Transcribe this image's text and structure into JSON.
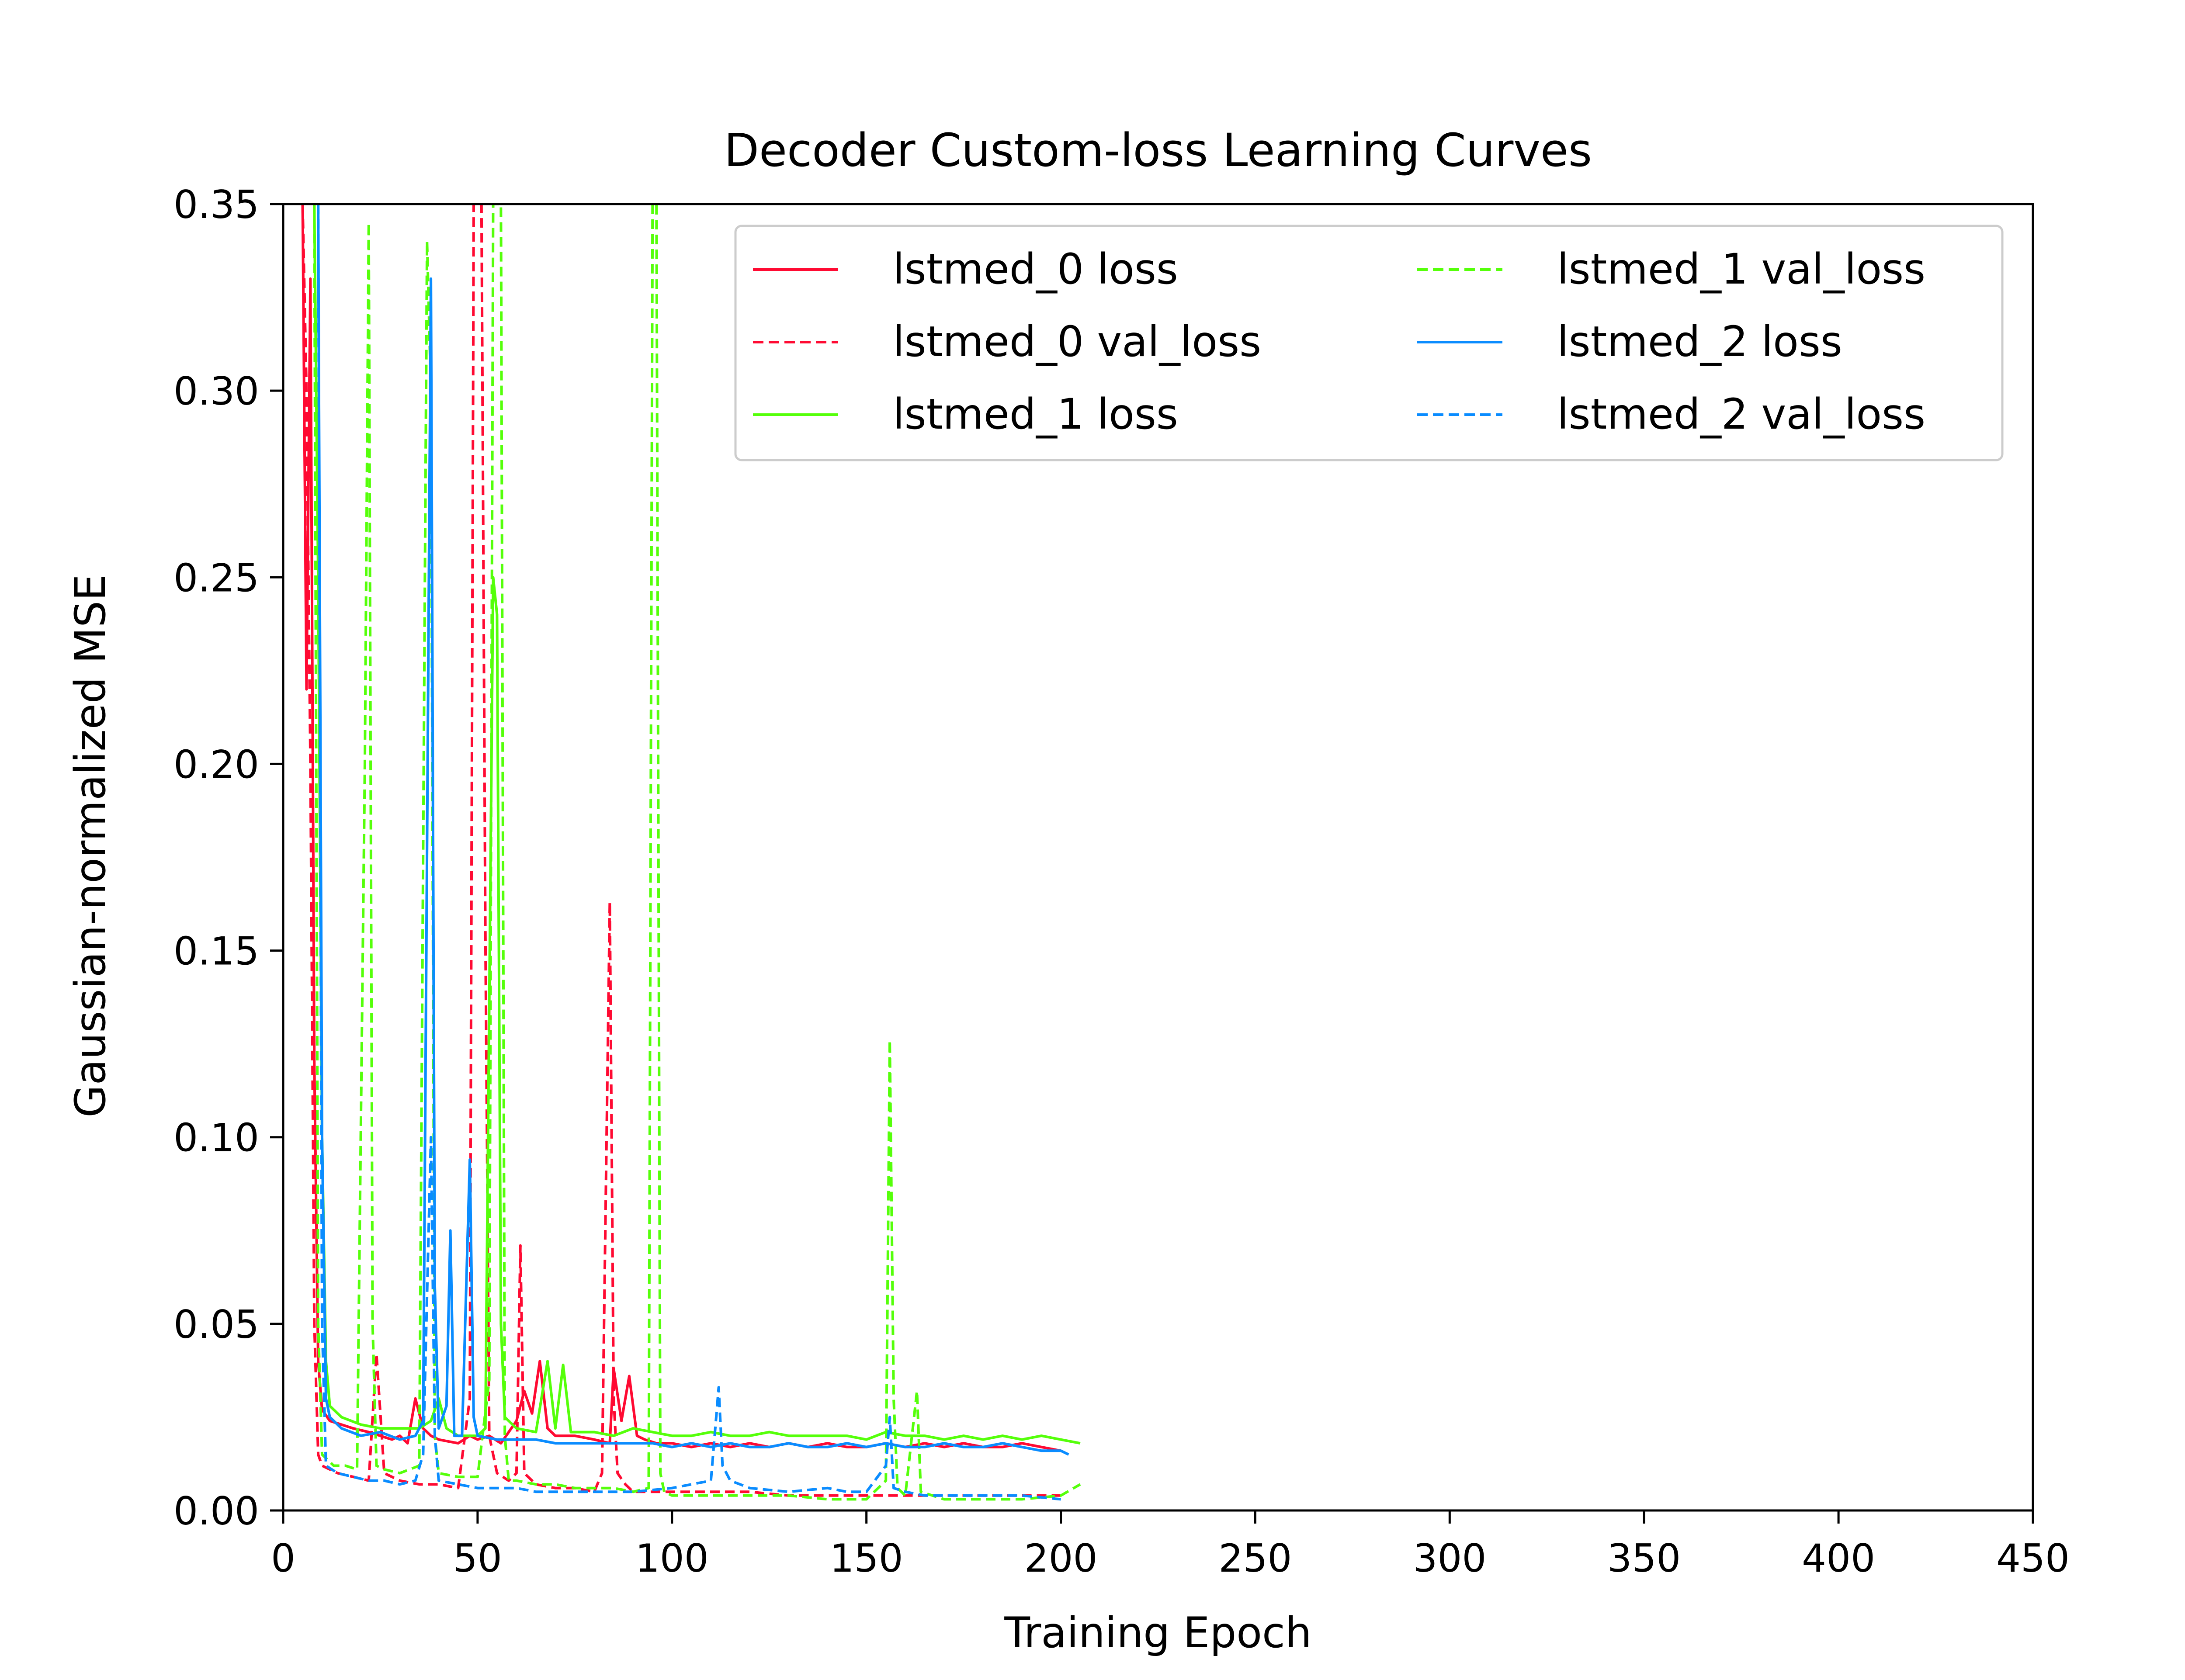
{
  "chart_data": {
    "type": "line",
    "title": "Decoder Custom-loss Learning Curves",
    "xlabel": "Training Epoch",
    "ylabel": "Gaussian-normalized MSE",
    "xlim": [
      0,
      450
    ],
    "ylim": [
      0,
      0.35
    ],
    "xticks": [
      0,
      50,
      100,
      150,
      200,
      250,
      300,
      350,
      400,
      450
    ],
    "yticks": [
      0.0,
      0.05,
      0.1,
      0.15,
      0.2,
      0.25,
      0.3,
      0.35
    ],
    "xtick_labels": [
      "0",
      "50",
      "100",
      "150",
      "200",
      "250",
      "300",
      "350",
      "400",
      "450"
    ],
    "ytick_labels": [
      "0.00",
      "0.05",
      "0.10",
      "0.15",
      "0.20",
      "0.25",
      "0.30",
      "0.35"
    ],
    "grid": false,
    "legend_placement": "top-right",
    "legend_columns": 2,
    "series": [
      {
        "name": "lstmed_0 loss",
        "color": "#ff0a32",
        "dash": "solid",
        "points": [
          [
            5,
            0.35
          ],
          [
            6,
            0.22
          ],
          [
            7,
            0.33
          ],
          [
            8,
            0.12
          ],
          [
            9,
            0.04
          ],
          [
            10,
            0.027
          ],
          [
            12,
            0.024
          ],
          [
            15,
            0.023
          ],
          [
            18,
            0.022
          ],
          [
            22,
            0.021
          ],
          [
            25,
            0.02
          ],
          [
            28,
            0.019
          ],
          [
            30,
            0.02
          ],
          [
            32,
            0.018
          ],
          [
            34,
            0.03
          ],
          [
            36,
            0.022
          ],
          [
            38,
            0.02
          ],
          [
            40,
            0.019
          ],
          [
            45,
            0.018
          ],
          [
            48,
            0.02
          ],
          [
            50,
            0.019
          ],
          [
            53,
            0.02
          ],
          [
            56,
            0.018
          ],
          [
            60,
            0.024
          ],
          [
            62,
            0.032
          ],
          [
            64,
            0.026
          ],
          [
            66,
            0.04
          ],
          [
            68,
            0.022
          ],
          [
            70,
            0.02
          ],
          [
            75,
            0.02
          ],
          [
            80,
            0.019
          ],
          [
            84,
            0.018
          ],
          [
            85,
            0.038
          ],
          [
            87,
            0.024
          ],
          [
            89,
            0.036
          ],
          [
            91,
            0.02
          ],
          [
            93,
            0.019
          ],
          [
            96,
            0.018
          ],
          [
            100,
            0.018
          ],
          [
            105,
            0.017
          ],
          [
            110,
            0.018
          ],
          [
            115,
            0.017
          ],
          [
            120,
            0.018
          ],
          [
            125,
            0.017
          ],
          [
            130,
            0.018
          ],
          [
            135,
            0.017
          ],
          [
            140,
            0.018
          ],
          [
            145,
            0.017
          ],
          [
            150,
            0.017
          ],
          [
            155,
            0.018
          ],
          [
            160,
            0.017
          ],
          [
            165,
            0.018
          ],
          [
            170,
            0.017
          ],
          [
            175,
            0.018
          ],
          [
            180,
            0.017
          ],
          [
            185,
            0.017
          ],
          [
            190,
            0.018
          ],
          [
            195,
            0.017
          ],
          [
            200,
            0.016
          ]
        ]
      },
      {
        "name": "lstmed_0 val_loss",
        "color": "#ff0a32",
        "dash": "dashed",
        "points": [
          [
            5,
            0.35
          ],
          [
            6,
            0.3
          ],
          [
            7,
            0.2
          ],
          [
            8,
            0.05
          ],
          [
            9,
            0.015
          ],
          [
            10,
            0.012
          ],
          [
            14,
            0.01
          ],
          [
            18,
            0.009
          ],
          [
            22,
            0.008
          ],
          [
            24,
            0.042
          ],
          [
            26,
            0.01
          ],
          [
            30,
            0.008
          ],
          [
            35,
            0.007
          ],
          [
            40,
            0.007
          ],
          [
            45,
            0.006
          ],
          [
            48,
            0.03
          ],
          [
            49,
            0.35
          ],
          [
            50,
            0.35
          ],
          [
            51,
            0.35
          ],
          [
            52,
            0.155
          ],
          [
            53,
            0.02
          ],
          [
            55,
            0.01
          ],
          [
            58,
            0.008
          ],
          [
            60,
            0.01
          ],
          [
            61,
            0.071
          ],
          [
            62,
            0.01
          ],
          [
            65,
            0.007
          ],
          [
            70,
            0.006
          ],
          [
            75,
            0.006
          ],
          [
            80,
            0.005
          ],
          [
            82,
            0.01
          ],
          [
            84,
            0.163
          ],
          [
            85,
            0.03
          ],
          [
            86,
            0.01
          ],
          [
            88,
            0.007
          ],
          [
            90,
            0.005
          ],
          [
            95,
            0.005
          ],
          [
            100,
            0.005
          ],
          [
            110,
            0.005
          ],
          [
            120,
            0.005
          ],
          [
            130,
            0.004
          ],
          [
            140,
            0.004
          ],
          [
            150,
            0.004
          ],
          [
            160,
            0.004
          ],
          [
            170,
            0.004
          ],
          [
            180,
            0.004
          ],
          [
            190,
            0.004
          ],
          [
            200,
            0.004
          ]
        ]
      },
      {
        "name": "lstmed_1 loss",
        "color": "#55ff0a",
        "dash": "solid",
        "points": [
          [
            8,
            0.35
          ],
          [
            9,
            0.25
          ],
          [
            10,
            0.1
          ],
          [
            11,
            0.04
          ],
          [
            12,
            0.028
          ],
          [
            15,
            0.025
          ],
          [
            20,
            0.023
          ],
          [
            25,
            0.022
          ],
          [
            30,
            0.022
          ],
          [
            35,
            0.022
          ],
          [
            38,
            0.024
          ],
          [
            40,
            0.03
          ],
          [
            42,
            0.022
          ],
          [
            45,
            0.02
          ],
          [
            50,
            0.02
          ],
          [
            52,
            0.022
          ],
          [
            54,
            0.25
          ],
          [
            55,
            0.24
          ],
          [
            56,
            0.05
          ],
          [
            57,
            0.025
          ],
          [
            60,
            0.022
          ],
          [
            65,
            0.021
          ],
          [
            68,
            0.04
          ],
          [
            70,
            0.022
          ],
          [
            72,
            0.039
          ],
          [
            74,
            0.021
          ],
          [
            80,
            0.021
          ],
          [
            85,
            0.02
          ],
          [
            90,
            0.022
          ],
          [
            95,
            0.021
          ],
          [
            100,
            0.02
          ],
          [
            105,
            0.02
          ],
          [
            110,
            0.021
          ],
          [
            115,
            0.02
          ],
          [
            120,
            0.02
          ],
          [
            125,
            0.021
          ],
          [
            130,
            0.02
          ],
          [
            135,
            0.02
          ],
          [
            140,
            0.02
          ],
          [
            145,
            0.02
          ],
          [
            150,
            0.019
          ],
          [
            155,
            0.021
          ],
          [
            160,
            0.02
          ],
          [
            165,
            0.02
          ],
          [
            170,
            0.019
          ],
          [
            175,
            0.02
          ],
          [
            180,
            0.019
          ],
          [
            185,
            0.02
          ],
          [
            190,
            0.019
          ],
          [
            195,
            0.02
          ],
          [
            200,
            0.019
          ],
          [
            205,
            0.018
          ]
        ]
      },
      {
        "name": "lstmed_1 val_loss",
        "color": "#55ff0a",
        "dash": "dashed",
        "points": [
          [
            8,
            0.35
          ],
          [
            9,
            0.05
          ],
          [
            10,
            0.015
          ],
          [
            13,
            0.012
          ],
          [
            16,
            0.012
          ],
          [
            19,
            0.011
          ],
          [
            21,
            0.2
          ],
          [
            22,
            0.345
          ],
          [
            23,
            0.05
          ],
          [
            24,
            0.012
          ],
          [
            26,
            0.011
          ],
          [
            30,
            0.01
          ],
          [
            35,
            0.012
          ],
          [
            37,
            0.34
          ],
          [
            38,
            0.3
          ],
          [
            39,
            0.02
          ],
          [
            40,
            0.01
          ],
          [
            45,
            0.009
          ],
          [
            50,
            0.009
          ],
          [
            53,
            0.035
          ],
          [
            54,
            0.35
          ],
          [
            56,
            0.35
          ],
          [
            57,
            0.02
          ],
          [
            58,
            0.008
          ],
          [
            60,
            0.008
          ],
          [
            65,
            0.007
          ],
          [
            70,
            0.007
          ],
          [
            75,
            0.006
          ],
          [
            80,
            0.006
          ],
          [
            85,
            0.006
          ],
          [
            90,
            0.005
          ],
          [
            94,
            0.006
          ],
          [
            95,
            0.35
          ],
          [
            96,
            0.35
          ],
          [
            97,
            0.01
          ],
          [
            98,
            0.005
          ],
          [
            100,
            0.004
          ],
          [
            110,
            0.004
          ],
          [
            120,
            0.004
          ],
          [
            130,
            0.004
          ],
          [
            140,
            0.003
          ],
          [
            150,
            0.003
          ],
          [
            155,
            0.008
          ],
          [
            156,
            0.126
          ],
          [
            157,
            0.03
          ],
          [
            158,
            0.006
          ],
          [
            160,
            0.004
          ],
          [
            163,
            0.032
          ],
          [
            164,
            0.005
          ],
          [
            170,
            0.003
          ],
          [
            180,
            0.003
          ],
          [
            190,
            0.003
          ],
          [
            200,
            0.004
          ],
          [
            205,
            0.007
          ]
        ]
      },
      {
        "name": "lstmed_2 loss",
        "color": "#0a8cff",
        "dash": "solid",
        "points": [
          [
            9,
            0.35
          ],
          [
            10,
            0.1
          ],
          [
            11,
            0.03
          ],
          [
            12,
            0.025
          ],
          [
            15,
            0.022
          ],
          [
            20,
            0.02
          ],
          [
            25,
            0.021
          ],
          [
            30,
            0.019
          ],
          [
            34,
            0.02
          ],
          [
            36,
            0.024
          ],
          [
            38,
            0.33
          ],
          [
            39,
            0.06
          ],
          [
            40,
            0.022
          ],
          [
            42,
            0.028
          ],
          [
            43,
            0.075
          ],
          [
            44,
            0.02
          ],
          [
            46,
            0.02
          ],
          [
            48,
            0.094
          ],
          [
            49,
            0.025
          ],
          [
            50,
            0.02
          ],
          [
            55,
            0.019
          ],
          [
            60,
            0.019
          ],
          [
            65,
            0.019
          ],
          [
            70,
            0.018
          ],
          [
            75,
            0.018
          ],
          [
            80,
            0.018
          ],
          [
            85,
            0.018
          ],
          [
            90,
            0.018
          ],
          [
            95,
            0.018
          ],
          [
            100,
            0.017
          ],
          [
            105,
            0.018
          ],
          [
            110,
            0.017
          ],
          [
            115,
            0.018
          ],
          [
            120,
            0.017
          ],
          [
            125,
            0.017
          ],
          [
            130,
            0.018
          ],
          [
            135,
            0.017
          ],
          [
            140,
            0.017
          ],
          [
            145,
            0.018
          ],
          [
            150,
            0.017
          ],
          [
            155,
            0.018
          ],
          [
            160,
            0.017
          ],
          [
            165,
            0.017
          ],
          [
            170,
            0.018
          ],
          [
            175,
            0.017
          ],
          [
            180,
            0.017
          ],
          [
            185,
            0.018
          ],
          [
            190,
            0.017
          ],
          [
            195,
            0.016
          ],
          [
            200,
            0.016
          ],
          [
            202,
            0.015
          ]
        ]
      },
      {
        "name": "lstmed_2 val_loss",
        "color": "#0a8cff",
        "dash": "dashed",
        "points": [
          [
            9,
            0.35
          ],
          [
            10,
            0.05
          ],
          [
            11,
            0.012
          ],
          [
            14,
            0.01
          ],
          [
            18,
            0.009
          ],
          [
            22,
            0.008
          ],
          [
            26,
            0.008
          ],
          [
            30,
            0.007
          ],
          [
            34,
            0.008
          ],
          [
            36,
            0.015
          ],
          [
            38,
            0.1
          ],
          [
            39,
            0.02
          ],
          [
            40,
            0.008
          ],
          [
            45,
            0.007
          ],
          [
            50,
            0.006
          ],
          [
            55,
            0.006
          ],
          [
            60,
            0.006
          ],
          [
            65,
            0.005
          ],
          [
            70,
            0.005
          ],
          [
            80,
            0.005
          ],
          [
            90,
            0.005
          ],
          [
            100,
            0.006
          ],
          [
            110,
            0.008
          ],
          [
            112,
            0.033
          ],
          [
            113,
            0.012
          ],
          [
            115,
            0.008
          ],
          [
            120,
            0.006
          ],
          [
            130,
            0.005
          ],
          [
            140,
            0.006
          ],
          [
            145,
            0.005
          ],
          [
            150,
            0.005
          ],
          [
            155,
            0.012
          ],
          [
            156,
            0.025
          ],
          [
            157,
            0.006
          ],
          [
            160,
            0.005
          ],
          [
            165,
            0.004
          ],
          [
            170,
            0.004
          ],
          [
            180,
            0.004
          ],
          [
            190,
            0.004
          ],
          [
            200,
            0.003
          ]
        ]
      }
    ]
  }
}
